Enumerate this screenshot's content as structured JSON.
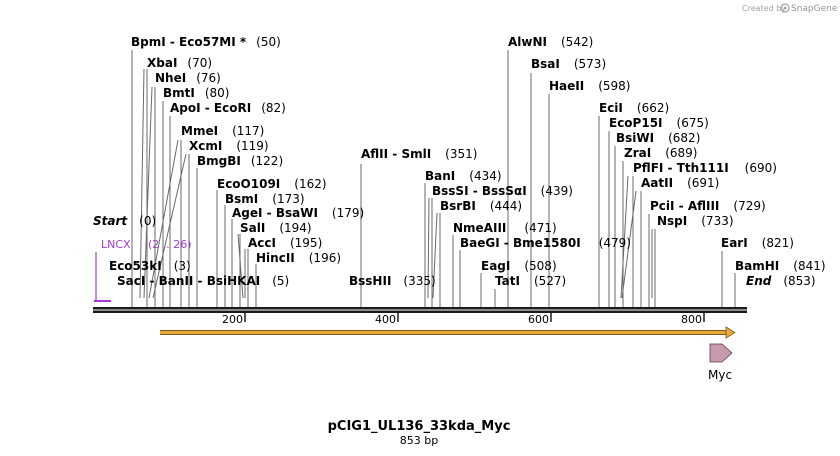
{
  "credit": {
    "prefix": "Created by",
    "brand": "SnapGene"
  },
  "plasmid": {
    "name": "pCIG1_UL136_33kda_Myc",
    "length_label": "853 bp"
  },
  "ruler": {
    "ticks": [
      "200",
      "400",
      "600",
      "800"
    ]
  },
  "sites": [
    {
      "id": "bpmi",
      "name": "BpmI  -  Eco57MI *",
      "pos_label": "(50)"
    },
    {
      "id": "xbai",
      "name": "XbaI",
      "pos_label": "(70)"
    },
    {
      "id": "nhei",
      "name": "NheI",
      "pos_label": "(76)"
    },
    {
      "id": "bmti",
      "name": "BmtI",
      "pos_label": "(80)"
    },
    {
      "id": "apoi",
      "name": "ApoI  -  EcoRI",
      "pos_label": "(82)"
    },
    {
      "id": "mmei",
      "name": "MmeI",
      "pos_label": "(117)"
    },
    {
      "id": "xcmi",
      "name": "XcmI",
      "pos_label": "(119)"
    },
    {
      "id": "bmgbi",
      "name": "BmgBI",
      "pos_label": "(122)"
    },
    {
      "id": "eco0109i",
      "name": "EcoO109I",
      "pos_label": "(162)"
    },
    {
      "id": "bsmi",
      "name": "BsmI",
      "pos_label": "(173)"
    },
    {
      "id": "agei",
      "name": "AgeI  -  BsaWI",
      "pos_label": "(179)"
    },
    {
      "id": "sali",
      "name": "SalI",
      "pos_label": "(194)"
    },
    {
      "id": "acci",
      "name": "AccI",
      "pos_label": "(195)"
    },
    {
      "id": "hincii",
      "name": "HincII",
      "pos_label": "(196)"
    },
    {
      "id": "start",
      "name": "Start",
      "pos_label": "(0)"
    },
    {
      "id": "eco53ki",
      "name": "Eco53kI",
      "pos_label": "(3)"
    },
    {
      "id": "saci",
      "name": "SacI  -  BanII  -  BsiHKAI",
      "pos_label": "(5)"
    },
    {
      "id": "afliii",
      "name": "AflII  -  SmlI",
      "pos_label": "(351)"
    },
    {
      "id": "bssHII",
      "name": "BssHII",
      "pos_label": "(335)"
    },
    {
      "id": "bani",
      "name": "BanI",
      "pos_label": "(434)"
    },
    {
      "id": "bsssi",
      "name": "BssSI  -  BssSαI",
      "pos_label": "(439)"
    },
    {
      "id": "bsrbi",
      "name": "BsrBI",
      "pos_label": "(444)"
    },
    {
      "id": "nmeaiii",
      "name": "NmeAIII",
      "pos_label": "(471)"
    },
    {
      "id": "baegi",
      "name": "BaeGI  -  Bme1580I",
      "pos_label": "(479)"
    },
    {
      "id": "eagi",
      "name": "EagI",
      "pos_label": "(508)"
    },
    {
      "id": "tati",
      "name": "TatI",
      "pos_label": "(527)"
    },
    {
      "id": "alwni",
      "name": "AlwNI",
      "pos_label": "(542)"
    },
    {
      "id": "bsai",
      "name": "BsaI",
      "pos_label": "(573)"
    },
    {
      "id": "haeii",
      "name": "HaeII",
      "pos_label": "(598)"
    },
    {
      "id": "ecii",
      "name": "EciI",
      "pos_label": "(662)"
    },
    {
      "id": "ecop15i",
      "name": "EcoP15I",
      "pos_label": "(675)"
    },
    {
      "id": "bsiwi",
      "name": "BsiWI",
      "pos_label": "(682)"
    },
    {
      "id": "zrai",
      "name": "ZraI",
      "pos_label": "(689)"
    },
    {
      "id": "pflfi",
      "name": "PflFI  -  Tth111I",
      "pos_label": "(690)"
    },
    {
      "id": "aatii",
      "name": "AatII",
      "pos_label": "(691)"
    },
    {
      "id": "pcii",
      "name": "PciI  -  AflIII",
      "pos_label": "(729)"
    },
    {
      "id": "nspi",
      "name": "NspI",
      "pos_label": "(733)"
    },
    {
      "id": "eari",
      "name": "EarI",
      "pos_label": "(821)"
    },
    {
      "id": "bamhi",
      "name": "BamHI",
      "pos_label": "(841)"
    },
    {
      "id": "end",
      "name": "End",
      "pos_label": "(853)"
    }
  ],
  "features": [
    {
      "id": "lncx",
      "name": "LNCX",
      "range_label": "(2 .. 26)",
      "color": "#a53ad8"
    },
    {
      "id": "myc",
      "name": "Myc",
      "color": "#c89aae"
    }
  ],
  "colors": {
    "orf": "#e8a93c",
    "backbone": "#1a1a1a"
  }
}
